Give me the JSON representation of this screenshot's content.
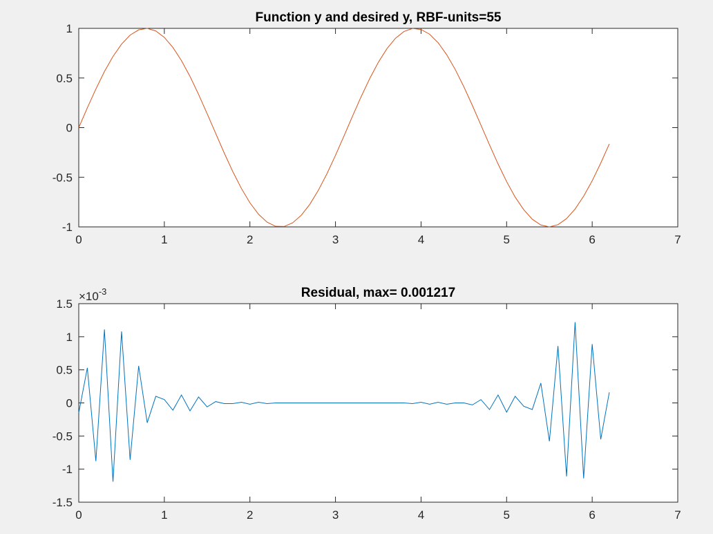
{
  "chart_data": [
    {
      "type": "line",
      "title": "Function y and desired y, RBF-units=55",
      "xlim": [
        0,
        7
      ],
      "ylim": [
        -1,
        1
      ],
      "xticks": [
        0,
        1,
        2,
        3,
        4,
        5,
        6,
        7
      ],
      "yticks": [
        -1,
        -0.5,
        0,
        0.5,
        1
      ],
      "xtick_labels": [
        "0",
        "1",
        "2",
        "3",
        "4",
        "5",
        "6",
        "7"
      ],
      "ytick_labels": [
        "-1",
        "-0.5",
        "0",
        "0.5",
        "1"
      ],
      "grid": false,
      "series": [
        {
          "color": "#d95319",
          "x": [
            0,
            0.1,
            0.2,
            0.3,
            0.4,
            0.5,
            0.6,
            0.7,
            0.8,
            0.9,
            1.0,
            1.1,
            1.2,
            1.3,
            1.4,
            1.5,
            1.6,
            1.7,
            1.8,
            1.9,
            2.0,
            2.1,
            2.2,
            2.3,
            2.4,
            2.5,
            2.6,
            2.7,
            2.8,
            2.9,
            3.0,
            3.1,
            3.2,
            3.3,
            3.4,
            3.5,
            3.6,
            3.7,
            3.8,
            3.9,
            4.0,
            4.1,
            4.2,
            4.3,
            4.4,
            4.5,
            4.6,
            4.7,
            4.8,
            4.9,
            5.0,
            5.1,
            5.2,
            5.3,
            5.4,
            5.5,
            5.6,
            5.7,
            5.8,
            5.9,
            6.0,
            6.1,
            6.2
          ],
          "y": [
            0,
            0.199,
            0.389,
            0.565,
            0.717,
            0.841,
            0.932,
            0.985,
            1.0,
            0.974,
            0.909,
            0.808,
            0.675,
            0.516,
            0.335,
            0.141,
            -0.058,
            -0.256,
            -0.443,
            -0.612,
            -0.757,
            -0.872,
            -0.952,
            -0.994,
            -0.996,
            -0.959,
            -0.883,
            -0.773,
            -0.631,
            -0.465,
            -0.279,
            -0.083,
            0.117,
            0.312,
            0.494,
            0.657,
            0.794,
            0.899,
            0.968,
            0.999,
            0.989,
            0.941,
            0.855,
            0.734,
            0.585,
            0.412,
            0.223,
            0.025,
            -0.174,
            -0.366,
            -0.544,
            -0.7,
            -0.827,
            -0.923,
            -0.981,
            -1.0,
            -0.978,
            -0.917,
            -0.82,
            -0.691,
            -0.536,
            -0.357,
            -0.164
          ]
        }
      ]
    },
    {
      "type": "line",
      "title": "Residual, max= 0.001217",
      "xlim": [
        0,
        7
      ],
      "ylim": [
        -1.5,
        1.5
      ],
      "xticks": [
        0,
        1,
        2,
        3,
        4,
        5,
        6,
        7
      ],
      "yticks": [
        -1.5,
        -1,
        -0.5,
        0,
        0.5,
        1,
        1.5
      ],
      "xtick_labels": [
        "0",
        "1",
        "2",
        "3",
        "4",
        "5",
        "6",
        "7"
      ],
      "ytick_labels": [
        "-1.5",
        "-1",
        "-0.5",
        "0",
        "0.5",
        "1",
        "1.5"
      ],
      "y_exponent_base": "×10",
      "y_exponent_power": "-3",
      "grid": false,
      "series": [
        {
          "color": "#0072bd",
          "x": [
            0,
            0.1,
            0.2,
            0.3,
            0.4,
            0.5,
            0.6,
            0.7,
            0.8,
            0.9,
            1.0,
            1.1,
            1.2,
            1.3,
            1.4,
            1.5,
            1.6,
            1.7,
            1.8,
            1.9,
            2.0,
            2.1,
            2.2,
            2.3,
            2.4,
            2.5,
            2.6,
            2.7,
            2.8,
            2.9,
            3.0,
            3.1,
            3.2,
            3.3,
            3.4,
            3.5,
            3.6,
            3.7,
            3.8,
            3.9,
            4.0,
            4.1,
            4.2,
            4.3,
            4.4,
            4.5,
            4.6,
            4.7,
            4.8,
            4.9,
            5.0,
            5.1,
            5.2,
            5.3,
            5.4,
            5.5,
            5.6,
            5.7,
            5.8,
            5.9,
            6.0,
            6.1,
            6.2
          ],
          "y": [
            -0.15,
            0.53,
            -0.88,
            1.11,
            -1.19,
            1.08,
            -0.86,
            0.56,
            -0.3,
            0.1,
            0.05,
            -0.11,
            0.12,
            -0.12,
            0.09,
            -0.06,
            0.02,
            -0.01,
            -0.01,
            0.01,
            -0.02,
            0.01,
            -0.01,
            0.0,
            0.0,
            0.0,
            0.0,
            0.0,
            0.0,
            0.0,
            0.0,
            0.0,
            0.0,
            0.0,
            0.0,
            0.0,
            0.0,
            0.0,
            0.0,
            -0.01,
            0.01,
            -0.02,
            0.01,
            -0.02,
            0.0,
            0.0,
            -0.03,
            0.05,
            -0.1,
            0.12,
            -0.14,
            0.1,
            -0.05,
            -0.1,
            0.3,
            -0.58,
            0.86,
            -1.11,
            1.22,
            -1.14,
            0.89,
            -0.55,
            0.16
          ]
        }
      ]
    }
  ]
}
